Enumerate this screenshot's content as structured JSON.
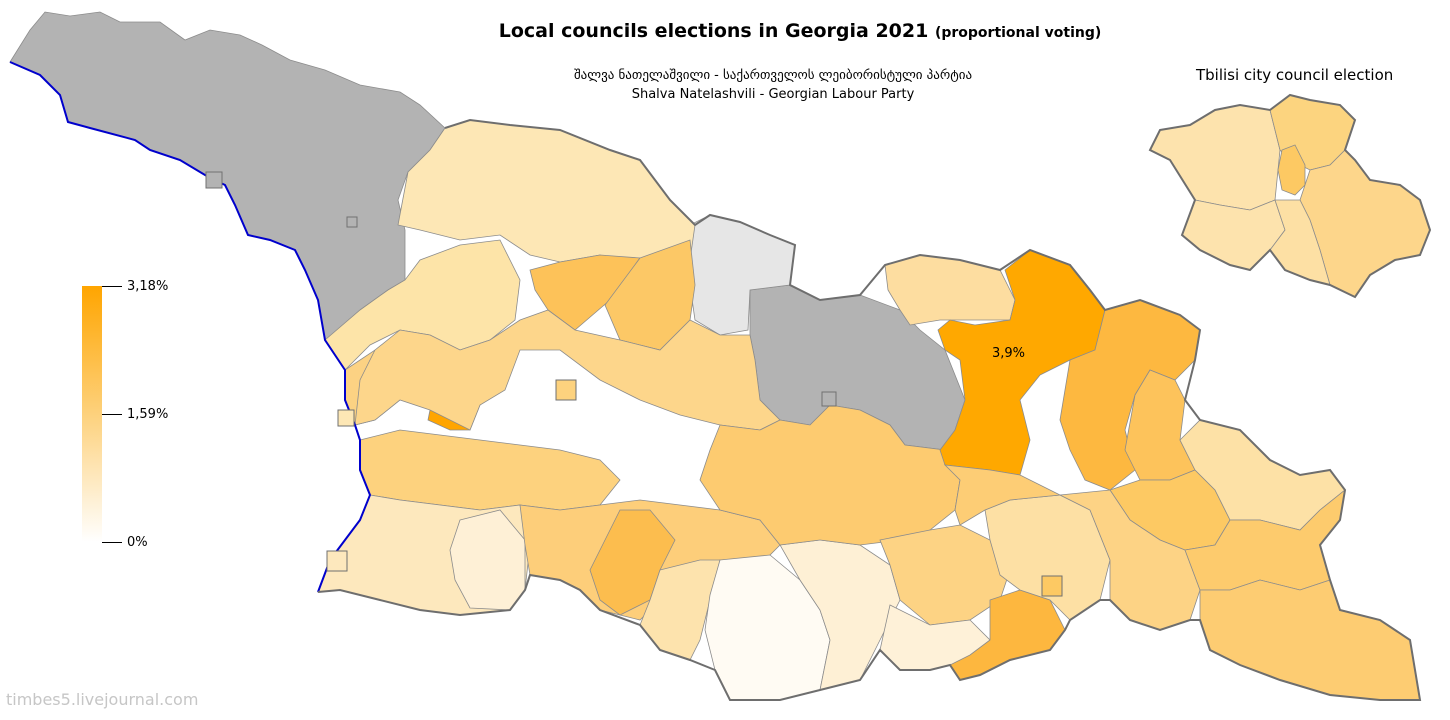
{
  "title": {
    "main": "Local councils elections in Georgia 2021",
    "suffix": "(proportional voting)"
  },
  "subtitle": {
    "line1": "შალვა ნათელაშვილი - საქართველოს ლეიბორისტული პარტია",
    "line2": "Shalva Natelashvili - Georgian Labour Party"
  },
  "tbilisi_title": "Tbilisi city council election",
  "legend": {
    "max_label": "3,18%",
    "mid_label": "1,59%",
    "min_label": "0%"
  },
  "highlight_label": "3,9%",
  "watermark": "timbes5.livejournal.com",
  "colors": {
    "scale_max": "#ffa500",
    "scale_mid": "#fdd17c",
    "scale_min": "#ffffff",
    "no_data_dark": "#b3b3b3",
    "no_data_light": "#e6e6e6",
    "coast": "#0000cc",
    "border": "#6e6e6e"
  }
}
